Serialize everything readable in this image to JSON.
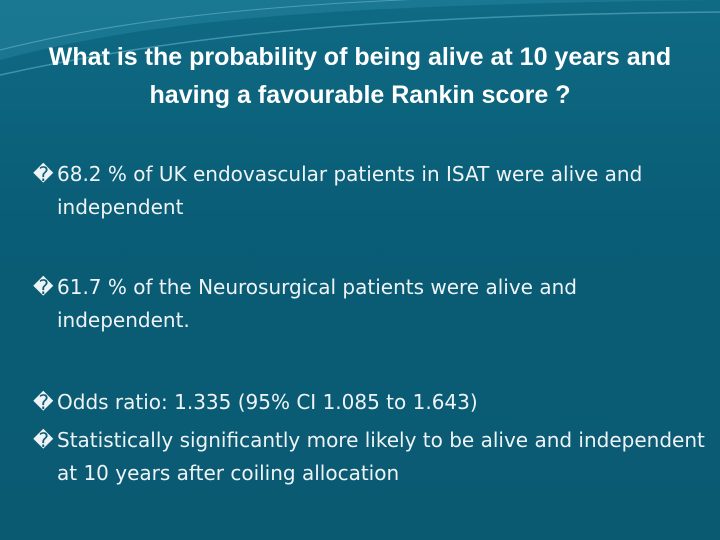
{
  "header": {
    "title": "What is the probability of being alive at 10 years and having a favourable Rankin score ?"
  },
  "bullets": [
    {
      "marker": "�",
      "text": "68.2 % of UK endovascular patients in ISAT were alive and independent"
    },
    {
      "marker": "�",
      "text": "61.7 % of the Neurosurgical patients were alive and independent."
    },
    {
      "marker": "�",
      "text": "Odds ratio:   1.335 (95% CI 1.085 to 1.643)"
    },
    {
      "marker": "�",
      "text": "Statistically significantly more likely to be alive and independent at 10 years after coiling allocation"
    }
  ]
}
